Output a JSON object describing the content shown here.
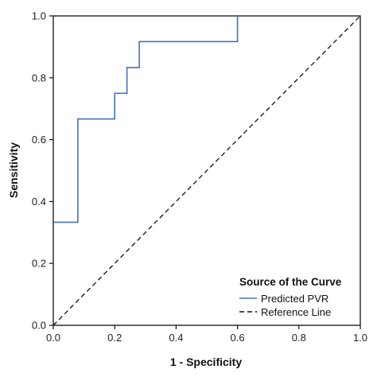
{
  "chart_data": {
    "type": "line",
    "xlabel": "1 - Specificity",
    "ylabel": "Sensitivity",
    "xlim": [
      0,
      1
    ],
    "ylim": [
      0,
      1
    ],
    "x_ticks": [
      "0.0",
      "0.2",
      "0.4",
      "0.6",
      "0.8",
      "1.0"
    ],
    "y_ticks": [
      "0.0",
      "0.2",
      "0.4",
      "0.6",
      "0.8",
      "1.0"
    ],
    "grid": false,
    "legend": {
      "title": "Source of the Curve",
      "placement": "bottom-right"
    },
    "series": [
      {
        "name": "Predicted PVR",
        "color": "#4472c4",
        "style": "solid",
        "x": [
          0.0,
          0.08,
          0.08,
          0.2,
          0.2,
          0.24,
          0.24,
          0.28,
          0.28,
          0.6,
          0.6
        ],
        "y": [
          0.333,
          0.333,
          0.667,
          0.667,
          0.75,
          0.75,
          0.833,
          0.833,
          0.917,
          0.917,
          1.0
        ]
      },
      {
        "name": "Reference Line",
        "color": "#111111",
        "style": "dashed",
        "x": [
          0,
          1
        ],
        "y": [
          0,
          1
        ]
      }
    ]
  }
}
